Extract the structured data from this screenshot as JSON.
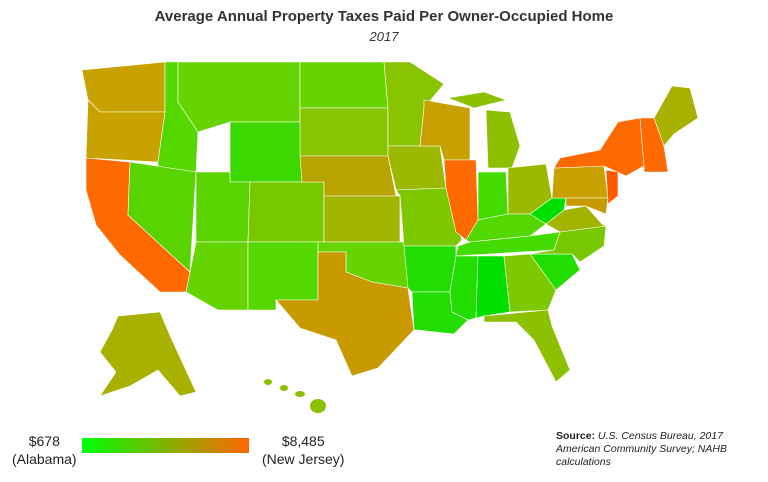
{
  "title": "Average Annual Property Taxes Paid Per Owner-Occupied Home",
  "subtitle": "2017",
  "legend": {
    "min_value": "$678",
    "min_label": "(Alabama)",
    "max_value": "$8,485",
    "max_label": "(New Jersey)",
    "min_color": "#00ff00",
    "max_color": "#ff6600"
  },
  "source": {
    "label": "Source:",
    "text": "U.S. Census Bureau, 2017 American Community Survey; NAHB calculations"
  },
  "colors": {
    "low": "#22dd00",
    "mid": "#99c000",
    "high": "#ff6600"
  }
}
